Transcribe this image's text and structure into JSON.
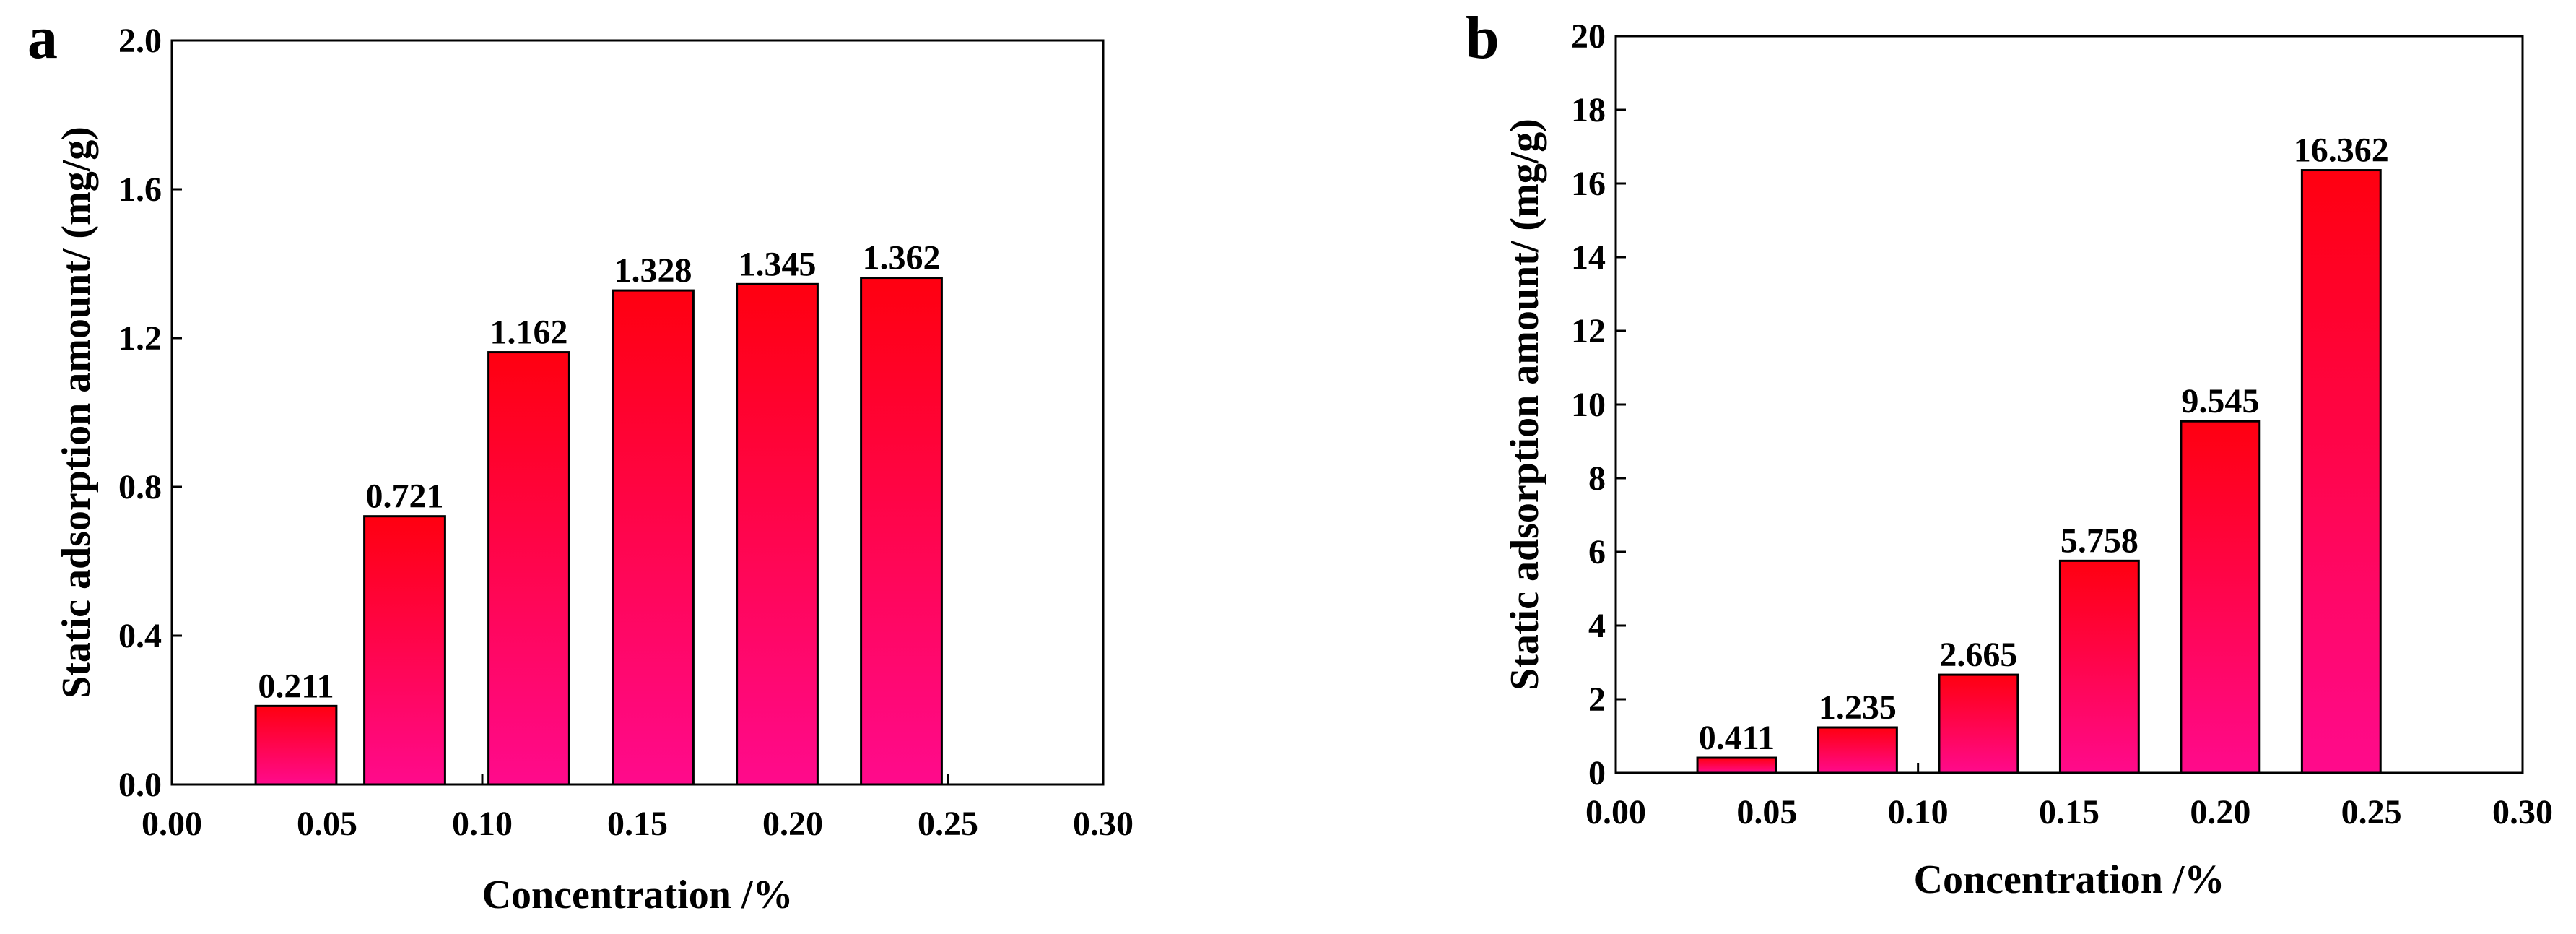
{
  "chart_data": [
    {
      "panel": "a",
      "type": "bar",
      "x": [
        0.04,
        0.075,
        0.115,
        0.155,
        0.195,
        0.235
      ],
      "values": [
        0.211,
        0.721,
        1.162,
        1.328,
        1.345,
        1.362
      ],
      "data_labels": [
        "0.211",
        "0.721",
        "1.162",
        "1.328",
        "1.345",
        "1.362"
      ],
      "bar_width": 0.026,
      "xlim": [
        0.0,
        0.3
      ],
      "ylim": [
        0.0,
        2.0
      ],
      "xticks": [
        0.0,
        0.05,
        0.1,
        0.15,
        0.2,
        0.25,
        0.3
      ],
      "xtick_labels": [
        "0.00",
        "0.05",
        "0.10",
        "0.15",
        "0.20",
        "0.25",
        "0.30"
      ],
      "yticks": [
        0.0,
        0.4,
        0.8,
        1.2,
        1.6,
        2.0
      ],
      "ytick_labels": [
        "0.0",
        "0.4",
        "0.8",
        "1.2",
        "1.6",
        "2.0"
      ],
      "xlabel": "Concentration /%",
      "ylabel": "Static adsorption amount/ (mg/g)",
      "grid": false
    },
    {
      "panel": "b",
      "type": "bar",
      "x": [
        0.04,
        0.08,
        0.12,
        0.16,
        0.2,
        0.24
      ],
      "values": [
        0.411,
        1.235,
        2.665,
        5.758,
        9.545,
        16.362
      ],
      "data_labels": [
        "0.411",
        "1.235",
        "2.665",
        "5.758",
        "9.545",
        "16.362"
      ],
      "bar_width": 0.026,
      "xlim": [
        0.0,
        0.3
      ],
      "ylim": [
        0,
        20
      ],
      "xticks": [
        0.0,
        0.05,
        0.1,
        0.15,
        0.2,
        0.25,
        0.3
      ],
      "xtick_labels": [
        "0.00",
        "0.05",
        "0.10",
        "0.15",
        "0.20",
        "0.25",
        "0.30"
      ],
      "yticks": [
        0,
        2,
        4,
        6,
        8,
        10,
        12,
        14,
        16,
        18,
        20
      ],
      "ytick_labels": [
        "0",
        "2",
        "4",
        "6",
        "8",
        "10",
        "12",
        "14",
        "16",
        "18",
        "20"
      ],
      "xlabel": "Concentration /%",
      "ylabel": "Static adsorption amount/ (mg/g)",
      "grid": false
    }
  ],
  "colors": {
    "bar_top": "#ff0010",
    "bar_bottom": "#ff0a8c",
    "axis": "#000000",
    "background": "#ffffff"
  }
}
